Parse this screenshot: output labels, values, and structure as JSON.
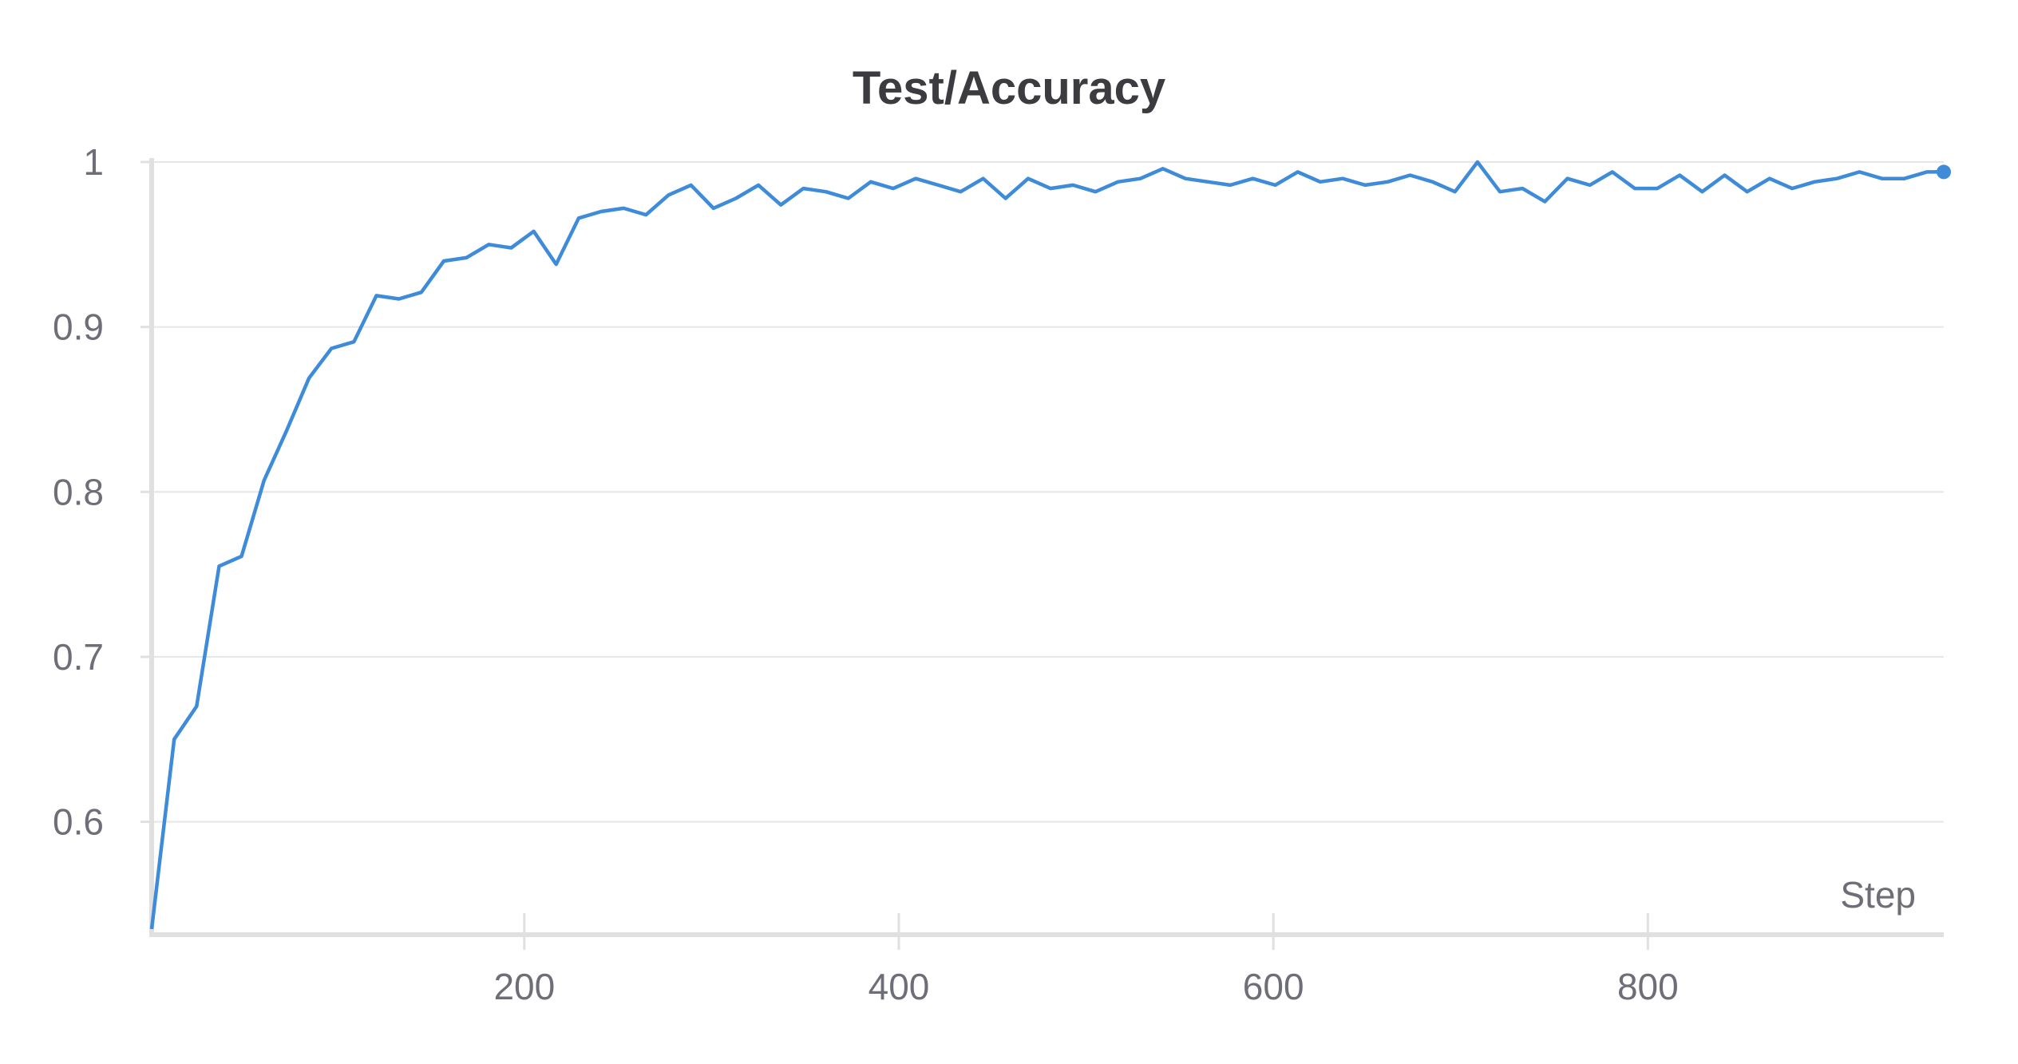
{
  "chart_data": {
    "type": "line",
    "title": "Test/Accuracy",
    "xlabel": "Step",
    "ylabel": "",
    "xlim": [
      1,
      958
    ],
    "ylim": [
      0.533,
      1.0
    ],
    "xticks": [
      200,
      400,
      600,
      800
    ],
    "yticks": [
      0.6,
      0.7,
      0.8,
      0.9,
      1
    ],
    "ytick_labels": [
      "0.6",
      "0.7",
      "0.8",
      "0.9",
      "1"
    ],
    "xtick_labels": [
      "200",
      "400",
      "600",
      "800"
    ],
    "grid": "horizontal",
    "legend": "none",
    "colors": {
      "series": "#3d8bd9"
    },
    "series": [
      {
        "x": [
          1,
          13,
          25,
          37,
          49,
          61,
          73,
          85,
          97,
          109,
          121,
          133,
          145,
          157,
          169,
          181,
          193,
          205,
          217,
          229,
          241,
          253,
          265,
          277,
          289,
          301,
          313,
          325,
          337,
          349,
          361,
          373,
          385,
          397,
          409,
          421,
          433,
          445,
          457,
          469,
          481,
          493,
          505,
          517,
          529,
          541,
          553,
          565,
          577,
          589,
          601,
          613,
          625,
          637,
          649,
          661,
          673,
          685,
          697,
          709,
          721,
          733,
          745,
          757,
          769,
          781,
          793,
          805,
          817,
          829,
          841,
          853,
          865,
          877,
          889,
          901,
          913,
          925,
          937,
          949,
          958
        ],
        "values": [
          0.535,
          0.65,
          0.67,
          0.755,
          0.761,
          0.807,
          0.837,
          0.869,
          0.887,
          0.891,
          0.919,
          0.917,
          0.921,
          0.94,
          0.942,
          0.95,
          0.948,
          0.958,
          0.938,
          0.966,
          0.97,
          0.972,
          0.968,
          0.98,
          0.986,
          0.972,
          0.978,
          0.986,
          0.974,
          0.984,
          0.982,
          0.978,
          0.988,
          0.984,
          0.99,
          0.986,
          0.982,
          0.99,
          0.978,
          0.99,
          0.984,
          0.986,
          0.982,
          0.988,
          0.99,
          0.996,
          0.99,
          0.988,
          0.986,
          0.99,
          0.986,
          0.994,
          0.988,
          0.99,
          0.986,
          0.988,
          0.992,
          0.988,
          0.982,
          1.0,
          0.982,
          0.984,
          0.976,
          0.99,
          0.986,
          0.994,
          0.984,
          0.984,
          0.992,
          0.982,
          0.992,
          0.982,
          0.99,
          0.984,
          0.988,
          0.99,
          0.994,
          0.99,
          0.99,
          0.994,
          0.994
        ]
      }
    ]
  }
}
